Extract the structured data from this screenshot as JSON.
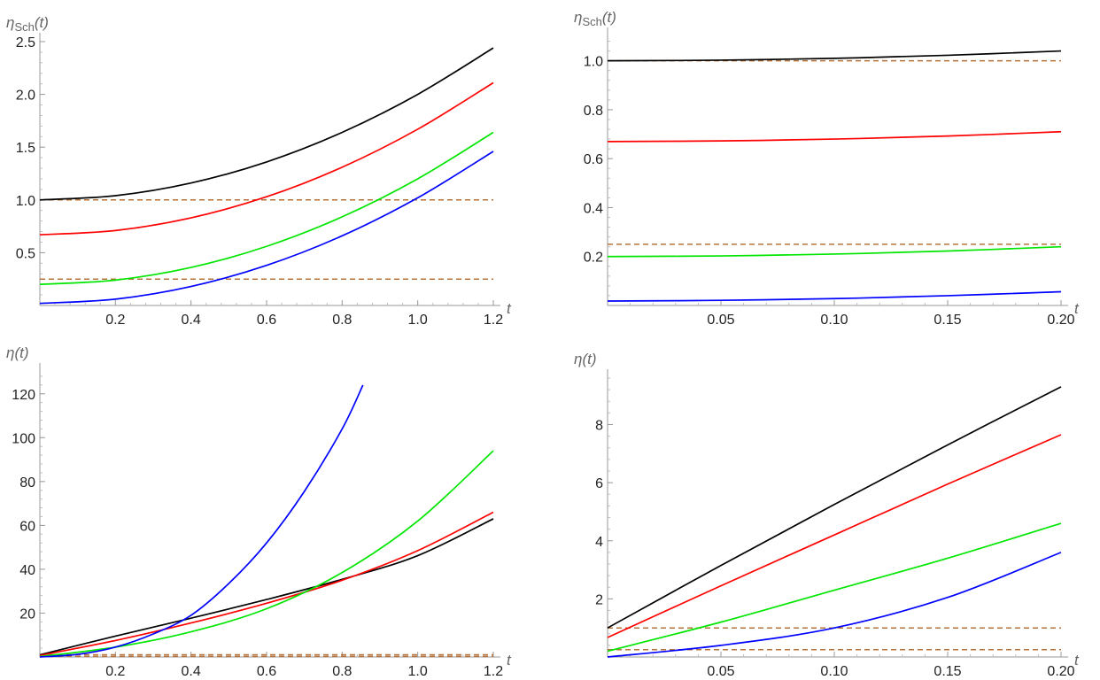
{
  "chart_data": [
    {
      "type": "line",
      "ylabel_main": "η",
      "ylabel_sub": "Sch",
      "ylabel_args": "(t)",
      "xlabel": "t",
      "xlim": [
        0,
        1.2
      ],
      "ylim": [
        0,
        2.5
      ],
      "xticks": [
        {
          "v": 0.2,
          "label": "0.2"
        },
        {
          "v": 0.4,
          "label": "0.4"
        },
        {
          "v": 0.6,
          "label": "0.6"
        },
        {
          "v": 0.8,
          "label": "0.8"
        },
        {
          "v": 1.0,
          "label": "1.0"
        },
        {
          "v": 1.2,
          "label": "1.2"
        }
      ],
      "yticks": [
        {
          "v": 0.5,
          "label": "0.5"
        },
        {
          "v": 1.0,
          "label": "1.0"
        },
        {
          "v": 1.5,
          "label": "1.5"
        },
        {
          "v": 2.0,
          "label": "2.0"
        },
        {
          "v": 2.5,
          "label": "2.5"
        }
      ],
      "series": [
        {
          "name": "black",
          "color": "#000000",
          "x": [
            0,
            0.2,
            0.4,
            0.6,
            0.8,
            1.0,
            1.2
          ],
          "y": [
            1.0,
            1.04,
            1.16,
            1.36,
            1.64,
            2.0,
            2.44
          ]
        },
        {
          "name": "red",
          "color": "#ff0000",
          "x": [
            0,
            0.2,
            0.4,
            0.6,
            0.8,
            1.0,
            1.2
          ],
          "y": [
            0.67,
            0.71,
            0.83,
            1.03,
            1.31,
            1.67,
            2.11
          ]
        },
        {
          "name": "green",
          "color": "#00e600",
          "x": [
            0,
            0.2,
            0.4,
            0.6,
            0.8,
            1.0,
            1.2
          ],
          "y": [
            0.2,
            0.24,
            0.36,
            0.56,
            0.84,
            1.2,
            1.64
          ]
        },
        {
          "name": "blue",
          "color": "#0000ff",
          "x": [
            0,
            0.2,
            0.4,
            0.6,
            0.8,
            1.0,
            1.2
          ],
          "y": [
            0.02,
            0.06,
            0.18,
            0.38,
            0.66,
            1.02,
            1.46
          ]
        }
      ],
      "reference_lines": [
        {
          "y": 1.0,
          "color": "#b5733b"
        },
        {
          "y": 0.25,
          "color": "#b5733b"
        }
      ]
    },
    {
      "type": "line",
      "ylabel_main": "η",
      "ylabel_sub": "Sch",
      "ylabel_args": "(t)",
      "xlabel": "t",
      "xlim": [
        0,
        0.2
      ],
      "ylim": [
        0,
        1.1
      ],
      "xticks": [
        {
          "v": 0.05,
          "label": "0.05"
        },
        {
          "v": 0.1,
          "label": "0.10"
        },
        {
          "v": 0.15,
          "label": "0.15"
        },
        {
          "v": 0.2,
          "label": "0.20"
        }
      ],
      "yticks": [
        {
          "v": 0.2,
          "label": "0.2"
        },
        {
          "v": 0.4,
          "label": "0.4"
        },
        {
          "v": 0.6,
          "label": "0.6"
        },
        {
          "v": 0.8,
          "label": "0.8"
        },
        {
          "v": 1.0,
          "label": "1.0"
        }
      ],
      "series": [
        {
          "name": "black",
          "color": "#000000",
          "x": [
            0,
            0.05,
            0.1,
            0.15,
            0.2
          ],
          "y": [
            1.0,
            1.0025,
            1.01,
            1.0225,
            1.04
          ]
        },
        {
          "name": "red",
          "color": "#ff0000",
          "x": [
            0,
            0.05,
            0.1,
            0.15,
            0.2
          ],
          "y": [
            0.67,
            0.6725,
            0.68,
            0.6925,
            0.71
          ]
        },
        {
          "name": "green",
          "color": "#00e600",
          "x": [
            0,
            0.05,
            0.1,
            0.15,
            0.2
          ],
          "y": [
            0.2,
            0.2025,
            0.21,
            0.2225,
            0.24
          ]
        },
        {
          "name": "blue",
          "color": "#0000ff",
          "x": [
            0,
            0.05,
            0.1,
            0.15,
            0.2
          ],
          "y": [
            0.018,
            0.021,
            0.028,
            0.04,
            0.056
          ]
        }
      ],
      "reference_lines": [
        {
          "y": 1.0,
          "color": "#b5733b"
        },
        {
          "y": 0.25,
          "color": "#b5733b"
        }
      ]
    },
    {
      "type": "line",
      "ylabel_main": "η",
      "ylabel_sub": "",
      "ylabel_args": "(t)",
      "xlabel": "t",
      "xlim": [
        0,
        1.2
      ],
      "ylim": [
        0,
        130
      ],
      "xticks": [
        {
          "v": 0.2,
          "label": "0.2"
        },
        {
          "v": 0.4,
          "label": "0.4"
        },
        {
          "v": 0.6,
          "label": "0.6"
        },
        {
          "v": 0.8,
          "label": "0.8"
        },
        {
          "v": 1.0,
          "label": "1.0"
        },
        {
          "v": 1.2,
          "label": "1.2"
        }
      ],
      "yticks": [
        {
          "v": 20,
          "label": "20"
        },
        {
          "v": 40,
          "label": "40"
        },
        {
          "v": 60,
          "label": "60"
        },
        {
          "v": 80,
          "label": "80"
        },
        {
          "v": 100,
          "label": "100"
        },
        {
          "v": 120,
          "label": "120"
        }
      ],
      "series": [
        {
          "name": "black",
          "color": "#000000",
          "x": [
            0,
            0.2,
            0.4,
            0.6,
            0.8,
            1.0,
            1.2
          ],
          "y": [
            1.0,
            9.5,
            17.7,
            26.2,
            35.4,
            46.2,
            63
          ]
        },
        {
          "name": "red",
          "color": "#ff0000",
          "x": [
            0,
            0.2,
            0.4,
            0.6,
            0.8,
            1.0,
            1.2
          ],
          "y": [
            0.7,
            7.5,
            15.5,
            24.5,
            35.0,
            48.5,
            66
          ]
        },
        {
          "name": "green",
          "color": "#00e600",
          "x": [
            0,
            0.2,
            0.4,
            0.6,
            0.8,
            1.0,
            1.2
          ],
          "y": [
            0.2,
            4.5,
            11.5,
            22.0,
            38.5,
            62.0,
            94
          ]
        },
        {
          "name": "blue",
          "color": "#0000ff",
          "x": [
            0,
            0.1,
            0.2,
            0.3,
            0.4,
            0.5,
            0.6,
            0.7,
            0.8,
            0.855
          ],
          "y": [
            0.0,
            1.2,
            4.5,
            10.5,
            19.0,
            33.5,
            52.0,
            75.5,
            104.0,
            124
          ]
        }
      ],
      "reference_lines": [
        {
          "y": 1.0,
          "color": "#b5733b"
        },
        {
          "y": 0.25,
          "color": "#b5733b"
        }
      ]
    },
    {
      "type": "line",
      "ylabel_main": "η",
      "ylabel_sub": "",
      "ylabel_args": "(t)",
      "xlabel": "t",
      "xlim": [
        0,
        0.2
      ],
      "ylim": [
        0,
        9.6
      ],
      "xticks": [
        {
          "v": 0.05,
          "label": "0.05"
        },
        {
          "v": 0.1,
          "label": "0.10"
        },
        {
          "v": 0.15,
          "label": "0.15"
        },
        {
          "v": 0.2,
          "label": "0.20"
        }
      ],
      "yticks": [
        {
          "v": 2,
          "label": "2"
        },
        {
          "v": 4,
          "label": "4"
        },
        {
          "v": 6,
          "label": "6"
        },
        {
          "v": 8,
          "label": "8"
        }
      ],
      "series": [
        {
          "name": "black",
          "color": "#000000",
          "x": [
            0,
            0.05,
            0.1,
            0.15,
            0.2
          ],
          "y": [
            1.0,
            3.15,
            5.25,
            7.3,
            9.3
          ]
        },
        {
          "name": "red",
          "color": "#ff0000",
          "x": [
            0,
            0.05,
            0.1,
            0.15,
            0.2
          ],
          "y": [
            0.67,
            2.45,
            4.2,
            5.95,
            7.65
          ]
        },
        {
          "name": "green",
          "color": "#00e600",
          "x": [
            0,
            0.05,
            0.1,
            0.15,
            0.2
          ],
          "y": [
            0.2,
            1.2,
            2.3,
            3.4,
            4.6
          ]
        },
        {
          "name": "blue",
          "color": "#0000ff",
          "x": [
            0,
            0.05,
            0.1,
            0.15,
            0.2
          ],
          "y": [
            0.0,
            0.4,
            1.0,
            2.05,
            3.6
          ]
        }
      ],
      "reference_lines": [
        {
          "y": 1.0,
          "color": "#b5733b"
        },
        {
          "y": 0.25,
          "color": "#b5733b"
        }
      ]
    }
  ]
}
